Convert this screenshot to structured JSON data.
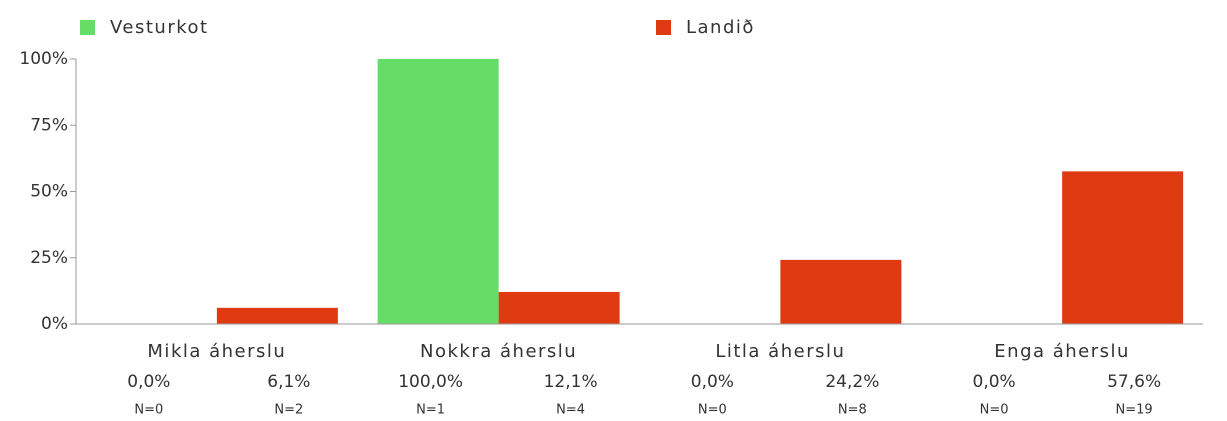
{
  "chart_data": {
    "type": "bar",
    "categories": [
      "Mikla áherslu",
      "Nokkra áherslu",
      "Litla áherslu",
      "Enga áherslu"
    ],
    "series": [
      {
        "name": "Vesturkot",
        "color": "#66dd66",
        "values": [
          0,
          100,
          0,
          0
        ],
        "value_labels": [
          "0,0%",
          "100,0%",
          "0,0%",
          "0,0%"
        ],
        "n_labels": [
          "N=0",
          "N=1",
          "N=0",
          "N=0"
        ]
      },
      {
        "name": "Landið",
        "color": "#e03a12",
        "values": [
          6.1,
          12.1,
          24.2,
          57.6
        ],
        "value_labels": [
          "6,1%",
          "12,1%",
          "24,2%",
          "57,6%"
        ],
        "n_labels": [
          "N=2",
          "N=4",
          "N=8",
          "N=19"
        ]
      }
    ],
    "ylim": [
      0,
      100
    ],
    "yticks": [
      {
        "value": 0,
        "label": "0%"
      },
      {
        "value": 25,
        "label": "25%"
      },
      {
        "value": 50,
        "label": "50%"
      },
      {
        "value": 75,
        "label": "75%"
      },
      {
        "value": 100,
        "label": "100%"
      }
    ],
    "legend": "top"
  }
}
